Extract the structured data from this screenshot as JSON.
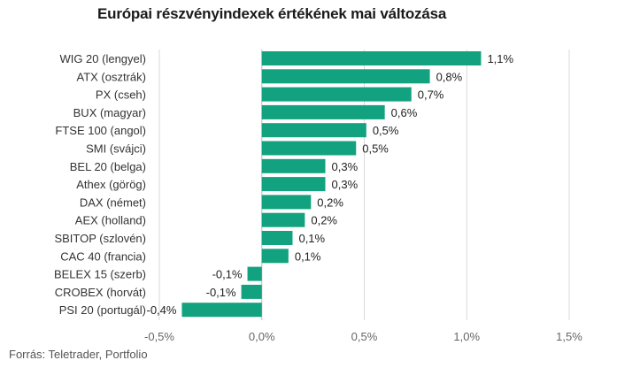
{
  "chart_data": {
    "type": "bar",
    "orientation": "horizontal",
    "title": "Európai részvényindexek értékének mai változása",
    "source": "Forrás: Teletrader, Portfolio",
    "categories": [
      "WIG 20 (lengyel)",
      "ATX (osztrák)",
      "PX (cseh)",
      "BUX (magyar)",
      "FTSE 100 (angol)",
      "SMI (svájci)",
      "BEL 20 (belga)",
      "Athex (görög)",
      "DAX (német)",
      "AEX (holland)",
      "SBITOP (szlovén)",
      "CAC 40 (francia)",
      "BELEX 15 (szerb)",
      "CROBEX (horvát)",
      "PSI 20 (portugál)"
    ],
    "values": [
      1.07,
      0.82,
      0.73,
      0.6,
      0.51,
      0.46,
      0.31,
      0.31,
      0.24,
      0.21,
      0.15,
      0.13,
      -0.07,
      -0.1,
      -0.39
    ],
    "data_labels": [
      "1,1%",
      "0,8%",
      "0,7%",
      "0,6%",
      "0,5%",
      "0,5%",
      "0,3%",
      "0,3%",
      "0,2%",
      "0,2%",
      "0,1%",
      "0,1%",
      "-0,1%",
      "-0,1%",
      "-0,4%"
    ],
    "xlim": [
      -0.5,
      1.5
    ],
    "xticks": [
      -0.5,
      0,
      0.5,
      1.0,
      1.5
    ],
    "xtick_labels": [
      "-0,5%",
      "0,0%",
      "0,5%",
      "1,0%",
      "1,5%"
    ],
    "grid": "vertical",
    "legend": "none",
    "colors": {
      "bar": "#12a27f",
      "grid": "#d9d9d9",
      "zero_line": "#bdbdbd",
      "text": "#333333"
    }
  }
}
